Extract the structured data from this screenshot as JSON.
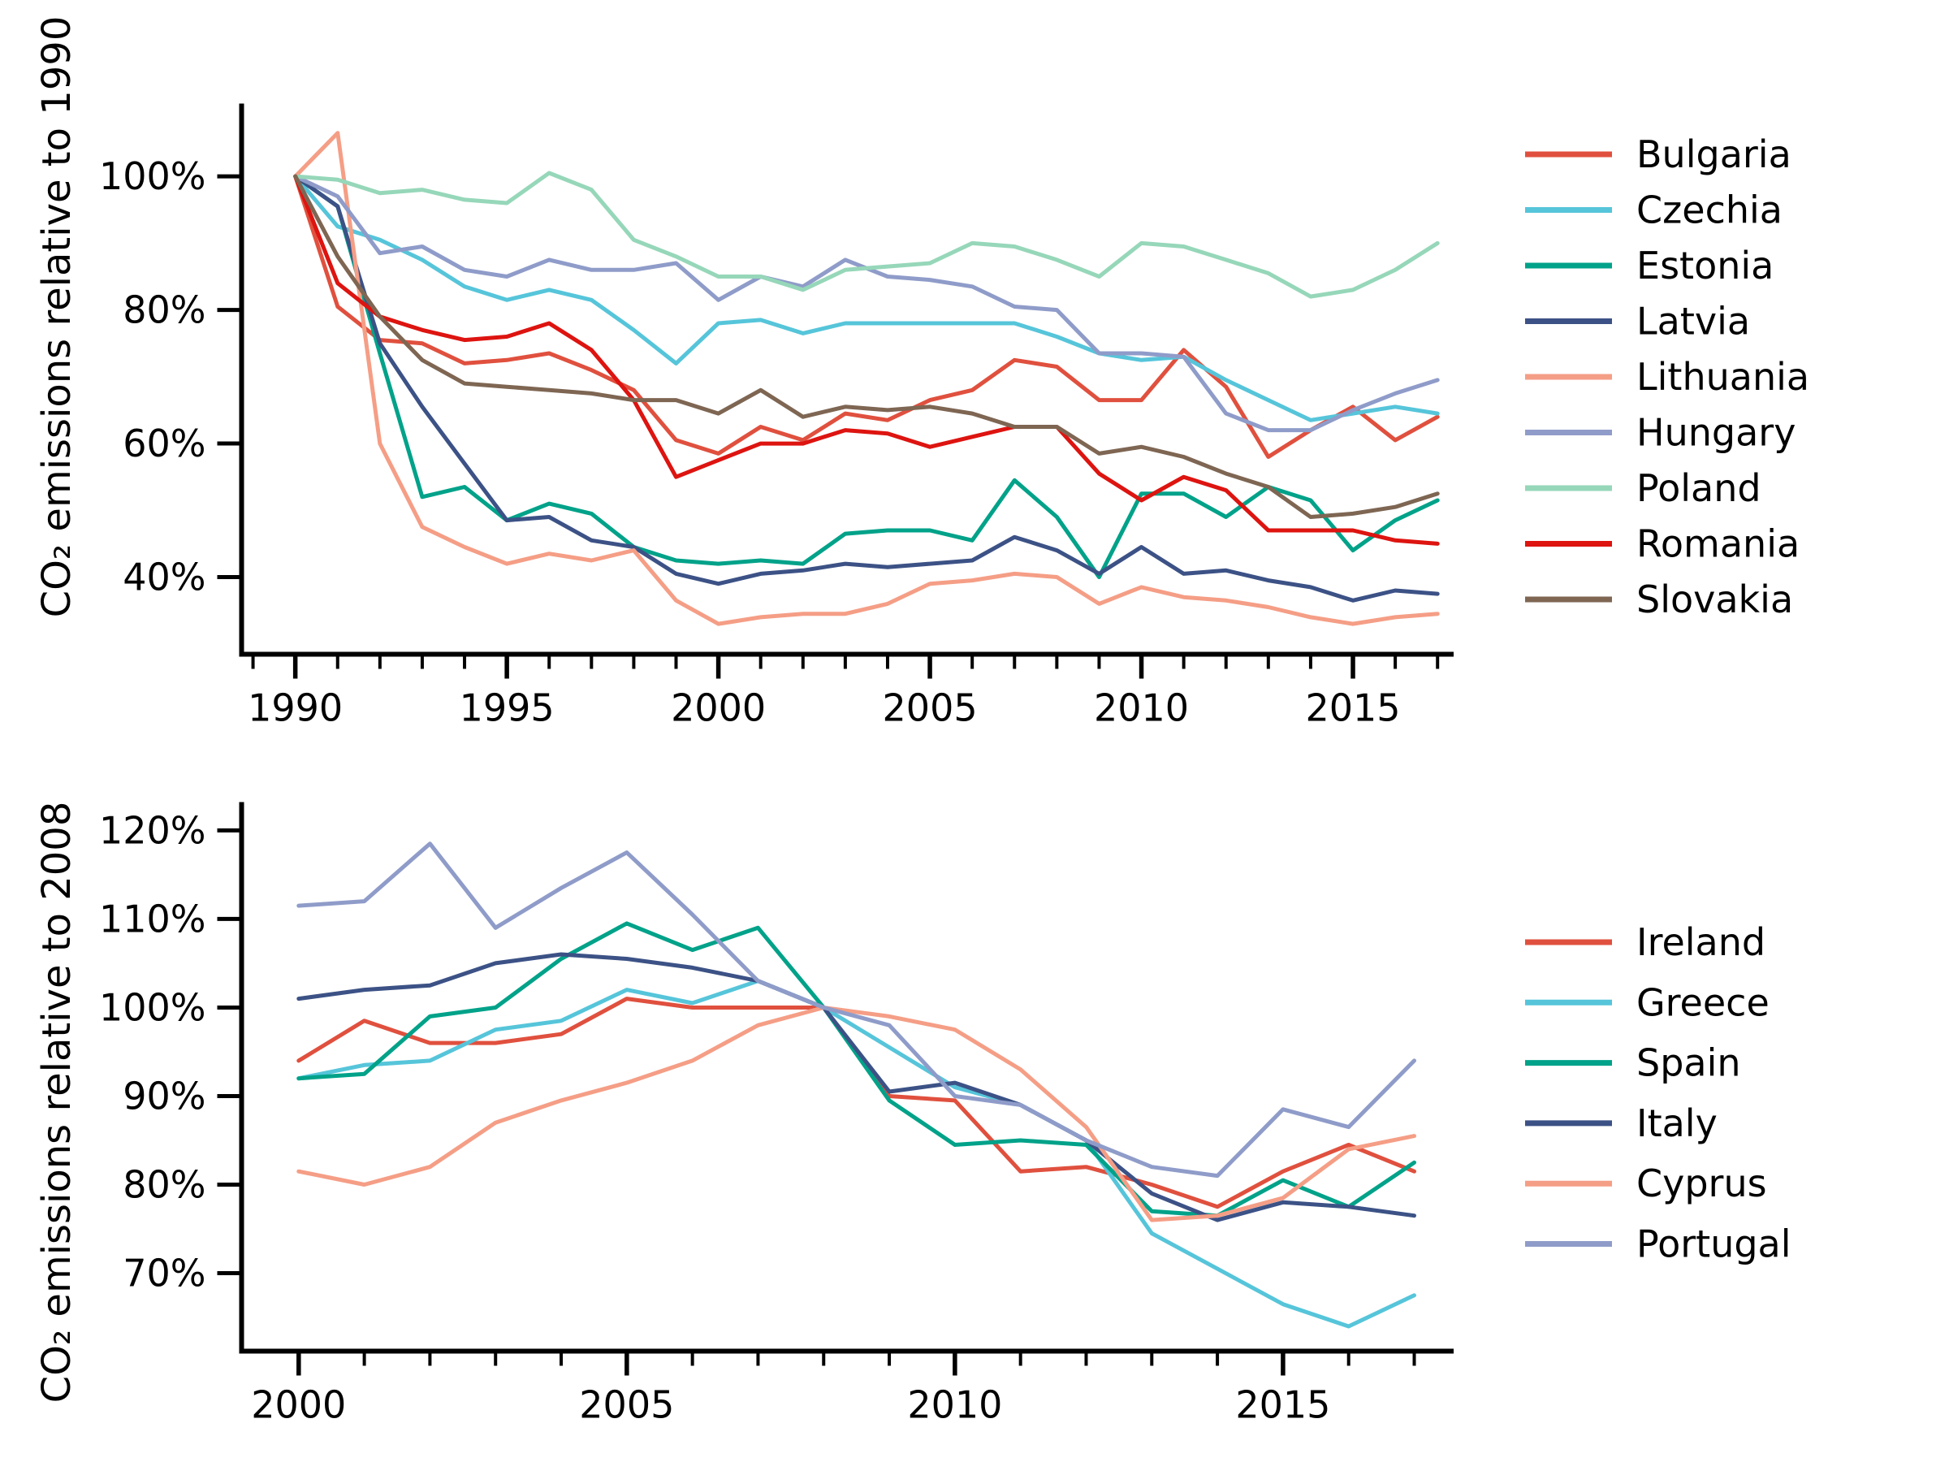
{
  "figure": {
    "background": "#ffffff",
    "axis_color": "#000000",
    "text_color": "#000000"
  },
  "chart_data": [
    {
      "id": "top",
      "type": "line",
      "title": "",
      "ylabel": "CO₂ emissions relative to 1990",
      "grid": false,
      "legend_position": "right",
      "xlim": [
        1988.73,
        2017.38
      ],
      "ylim": [
        28.45,
        110.9
      ],
      "x": [
        1990,
        1991,
        1992,
        1993,
        1994,
        1995,
        1996,
        1997,
        1998,
        1999,
        2000,
        2001,
        2002,
        2003,
        2004,
        2005,
        2006,
        2007,
        2008,
        2009,
        2010,
        2011,
        2012,
        2013,
        2014,
        2015,
        2016,
        2017
      ],
      "xtick_major": [
        1990,
        1995,
        2000,
        2005,
        2010,
        2015
      ],
      "xtick_labels": [
        "1990",
        "1995",
        "2000",
        "2005",
        "2010",
        "2015"
      ],
      "ytick_values": [
        40,
        60,
        80,
        100
      ],
      "ytick_labels": [
        "40%",
        "60%",
        "80%",
        "100%"
      ],
      "series": [
        {
          "name": "Bulgaria",
          "color": "#e0503e",
          "values": [
            100,
            80.5,
            75.5,
            75,
            72,
            72.5,
            73.5,
            71,
            68,
            60.5,
            58.5,
            62.5,
            60.5,
            64.5,
            63.5,
            66.5,
            68,
            72.5,
            71.5,
            66.5,
            66.5,
            74,
            68.5,
            58,
            62,
            65.5,
            60.5,
            64
          ]
        },
        {
          "name": "Czechia",
          "color": "#56c5da",
          "values": [
            100,
            92.5,
            90.5,
            87.5,
            83.5,
            81.5,
            83,
            81.5,
            77,
            72,
            78,
            78.5,
            76.5,
            78,
            78,
            78,
            78,
            78,
            76,
            73.5,
            72.5,
            73,
            69.5,
            66.5,
            63.5,
            64.5,
            65.5,
            64.5
          ]
        },
        {
          "name": "Estonia",
          "color": "#00a289",
          "values": [
            100,
            95.5,
            73.5,
            52,
            53.5,
            48.5,
            51,
            49.5,
            44.5,
            42.5,
            42,
            42.5,
            42,
            46.5,
            47,
            47,
            45.5,
            54.5,
            49,
            40,
            52.5,
            52.5,
            49,
            53.5,
            51.5,
            44,
            48.5,
            51.5
          ]
        },
        {
          "name": "Latvia",
          "color": "#3c5286",
          "values": [
            100,
            95.5,
            75,
            65.5,
            57,
            48.5,
            49,
            45.5,
            44.5,
            40.5,
            39,
            40.5,
            41,
            42,
            41.5,
            42,
            42.5,
            46,
            44,
            40.5,
            44.5,
            40.5,
            41,
            39.5,
            38.5,
            36.5,
            38,
            37.5
          ]
        },
        {
          "name": "Lithuania",
          "color": "#f59e86",
          "values": [
            100,
            106.5,
            60,
            47.5,
            44.5,
            42,
            43.5,
            42.5,
            44,
            36.5,
            33,
            34,
            34.5,
            34.5,
            36,
            39,
            39.5,
            40.5,
            40,
            36,
            38.5,
            37,
            36.5,
            35.5,
            34,
            33,
            34,
            34.5
          ]
        },
        {
          "name": "Hungary",
          "color": "#8f9cc9",
          "values": [
            100,
            97,
            88.5,
            89.5,
            86,
            85,
            87.5,
            86,
            86,
            87,
            81.5,
            85,
            83.5,
            87.5,
            85,
            84.5,
            83.5,
            80.5,
            80,
            73.5,
            73.5,
            73,
            64.5,
            62,
            62,
            65,
            67.5,
            69.5
          ]
        },
        {
          "name": "Poland",
          "color": "#96d7b9",
          "values": [
            100,
            99.5,
            97.5,
            98,
            96.5,
            96,
            100.5,
            98,
            90.5,
            88,
            85,
            85,
            83,
            86,
            86.5,
            87,
            90,
            89.5,
            87.5,
            85,
            90,
            89.5,
            87.5,
            85.5,
            82,
            83,
            86,
            90
          ]
        },
        {
          "name": "Romania",
          "color": "#dd1410",
          "values": [
            100,
            84,
            79,
            77,
            75.5,
            76,
            78,
            74,
            66.5,
            55,
            57.5,
            60,
            60,
            62,
            61.5,
            59.5,
            61,
            62.5,
            62.5,
            55.5,
            51.5,
            55,
            53,
            47,
            47,
            47,
            45.5,
            45
          ]
        },
        {
          "name": "Slovakia",
          "color": "#7e6653",
          "values": [
            100,
            88,
            79,
            72.5,
            69,
            68.5,
            68,
            67.5,
            66.5,
            66.5,
            64.5,
            68,
            64,
            65.5,
            65,
            65.5,
            64.5,
            62.5,
            62.5,
            58.5,
            59.5,
            58,
            55.5,
            53.5,
            49,
            49.5,
            50.5,
            52.5
          ]
        }
      ]
    },
    {
      "id": "bottom",
      "type": "line",
      "title": "",
      "ylabel": "CO₂ emissions relative to 2008",
      "grid": false,
      "legend_position": "right",
      "xlim": [
        1999.13,
        2017.6
      ],
      "ylim": [
        61.2,
        123.2
      ],
      "x": [
        2000,
        2001,
        2002,
        2003,
        2004,
        2005,
        2006,
        2007,
        2008,
        2009,
        2010,
        2011,
        2012,
        2013,
        2014,
        2015,
        2016,
        2017
      ],
      "xtick_major": [
        2000,
        2005,
        2010,
        2015
      ],
      "xtick_labels": [
        "2000",
        "2005",
        "2010",
        "2015"
      ],
      "ytick_values": [
        70,
        80,
        90,
        100,
        110,
        120
      ],
      "ytick_labels": [
        "70%",
        "80%",
        "90%",
        "100%",
        "110%",
        "120%"
      ],
      "series": [
        {
          "name": "Ireland",
          "color": "#e0503e",
          "values": [
            94,
            98.5,
            96,
            96,
            97,
            101,
            100,
            100,
            100,
            90,
            89.5,
            81.5,
            82,
            80,
            77.5,
            81.5,
            84.5,
            81.5
          ]
        },
        {
          "name": "Greece",
          "color": "#56c5da",
          "values": [
            92,
            93.5,
            94,
            97.5,
            98.5,
            102,
            100.5,
            103,
            100,
            95.5,
            91,
            89,
            85,
            74.5,
            70.5,
            66.5,
            64,
            67.5
          ]
        },
        {
          "name": "Spain",
          "color": "#00a289",
          "values": [
            92,
            92.5,
            99,
            100,
            105.5,
            109.5,
            106.5,
            109,
            100,
            89.5,
            84.5,
            85,
            84.5,
            77,
            76.5,
            80.5,
            77.5,
            82.5
          ]
        },
        {
          "name": "Italy",
          "color": "#3c5286",
          "values": [
            101,
            102,
            102.5,
            105,
            106,
            105.5,
            104.5,
            103,
            100,
            90.5,
            91.5,
            89,
            85,
            79,
            76,
            78,
            77.5,
            76.5
          ]
        },
        {
          "name": "Cyprus",
          "color": "#f59e86",
          "values": [
            81.5,
            80,
            82,
            87,
            89.5,
            91.5,
            94,
            98,
            100,
            99,
            97.5,
            93,
            86.5,
            76,
            76.5,
            78.5,
            84,
            85.5
          ]
        },
        {
          "name": "Portugal",
          "color": "#8f9cc9",
          "values": [
            111.5,
            112,
            118.5,
            109,
            113.5,
            117.5,
            110.5,
            103,
            100,
            98,
            90,
            89,
            85,
            82,
            81,
            88.5,
            86.5,
            94
          ]
        }
      ]
    }
  ]
}
